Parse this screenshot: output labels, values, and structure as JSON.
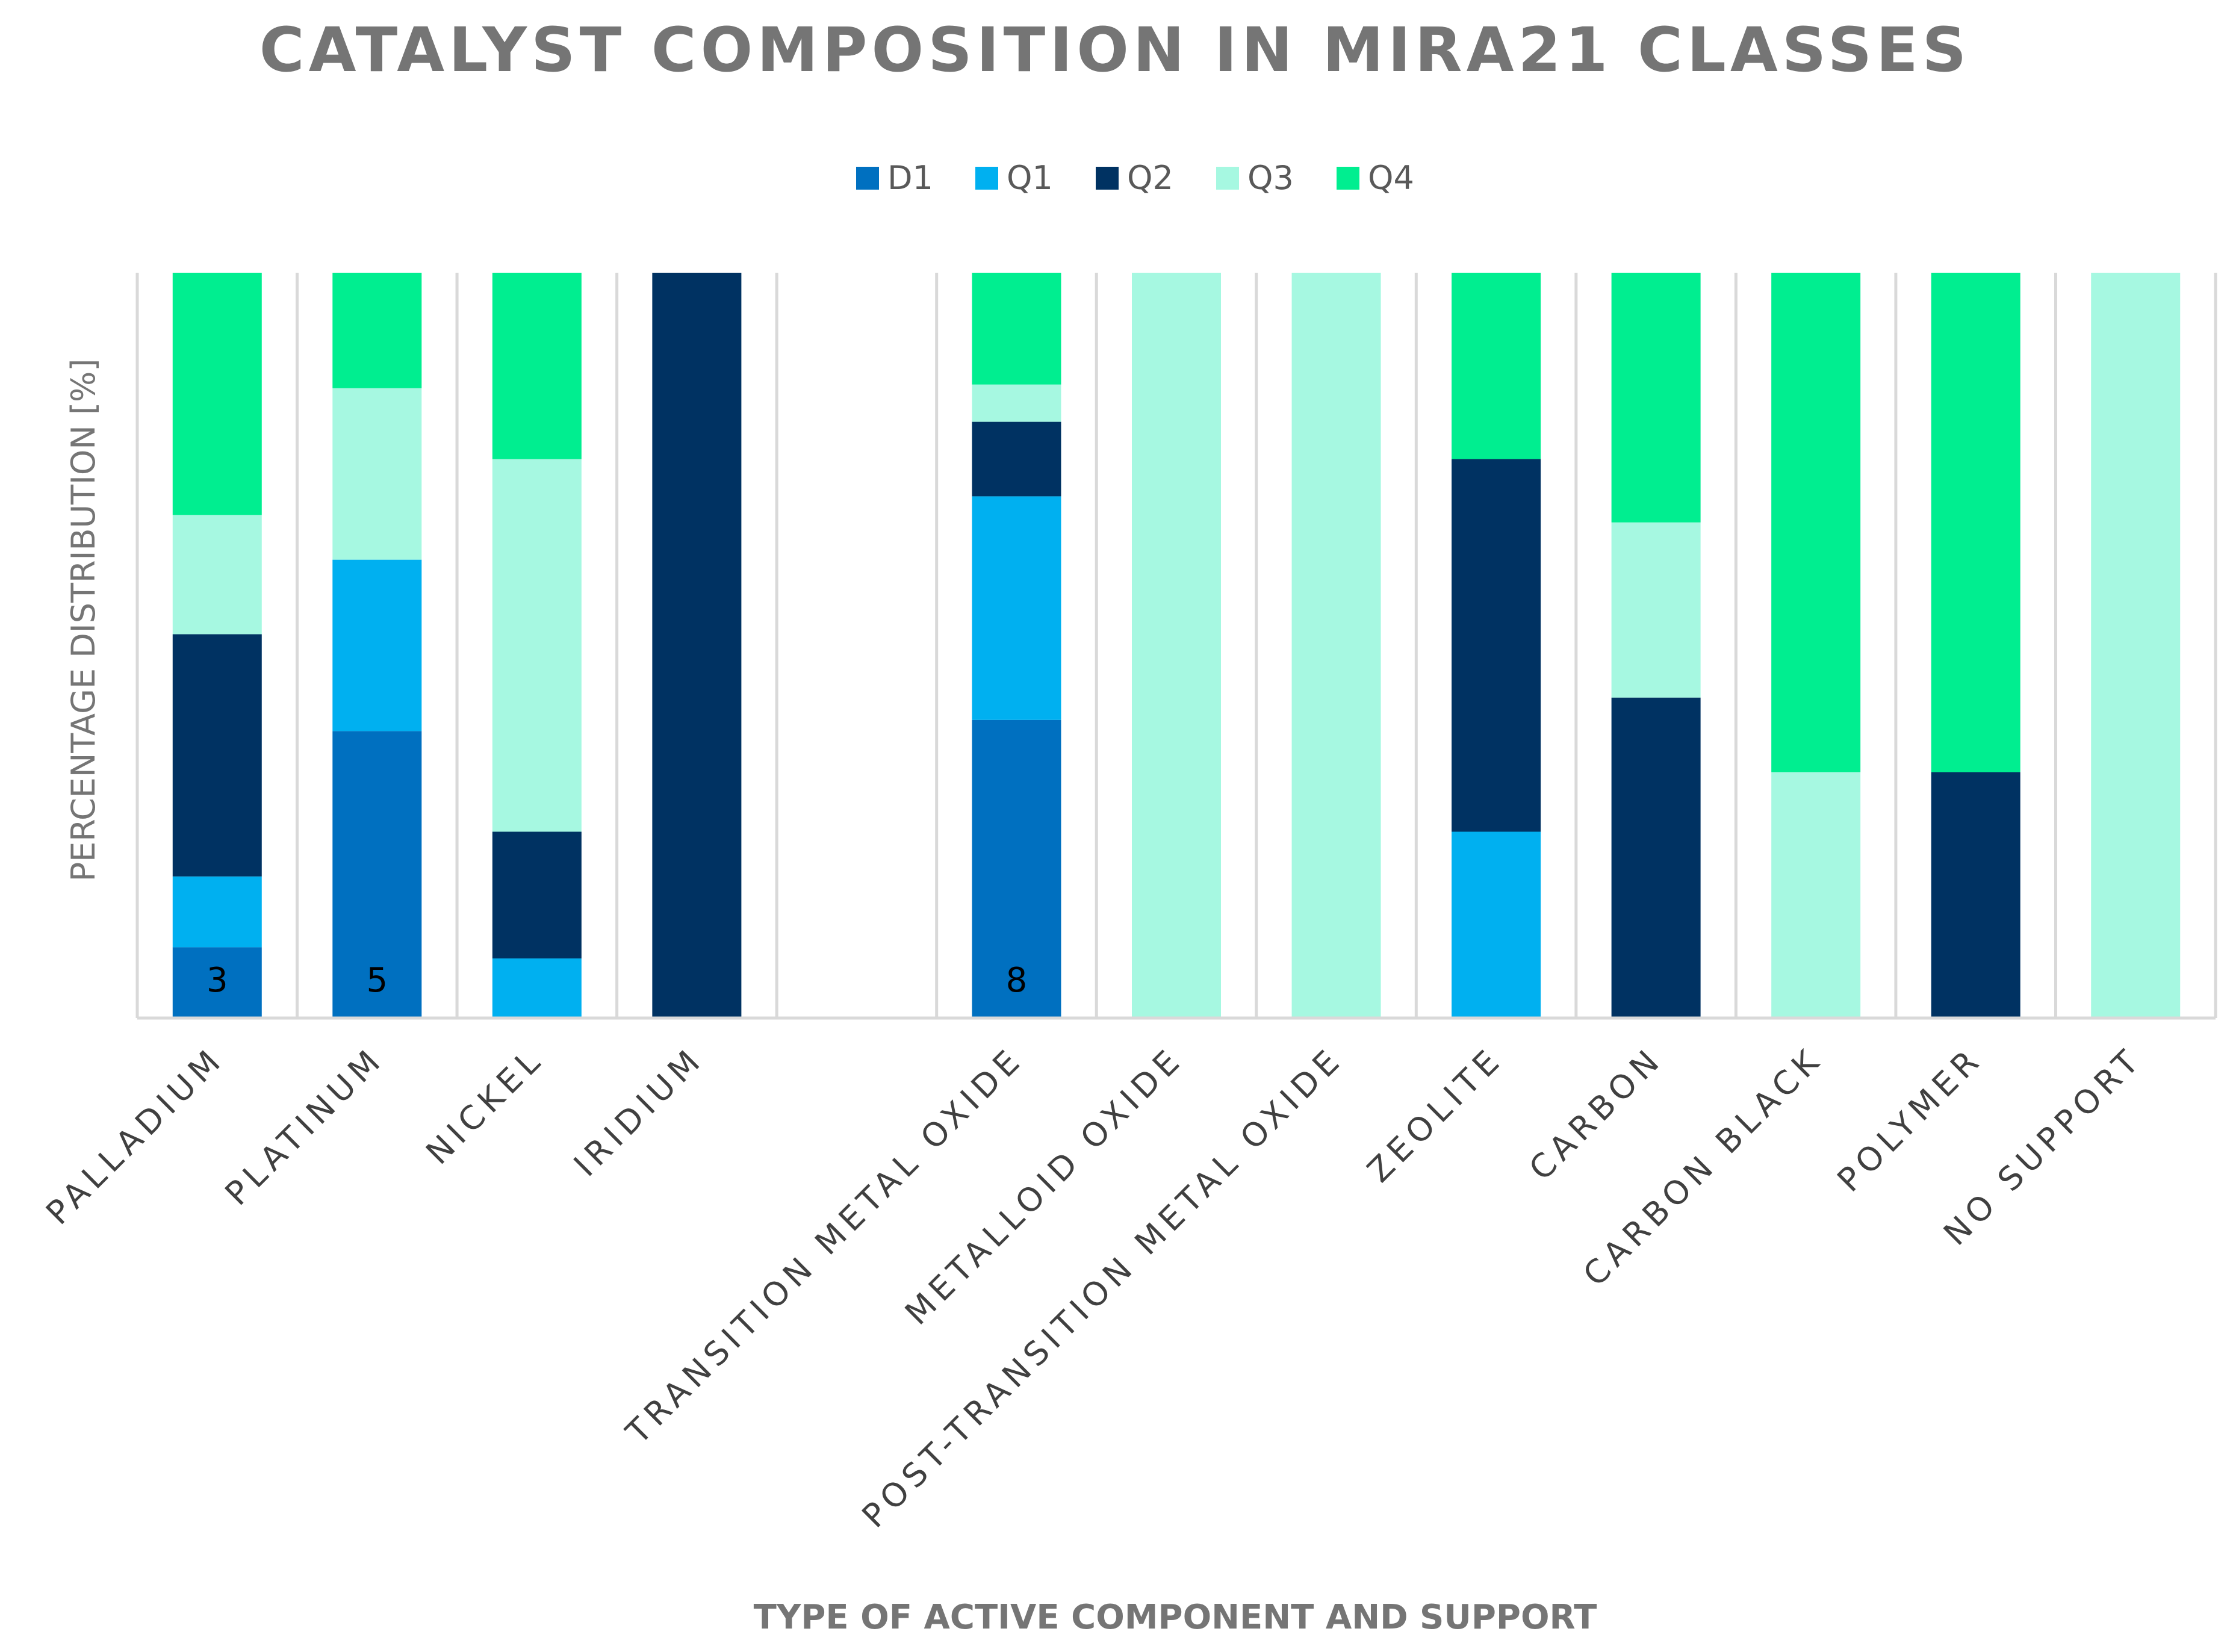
{
  "chart_data": {
    "type": "bar",
    "stacked": true,
    "title": "CATALYST COMPOSITION IN MIRA21 CLASSES",
    "xlabel": "TYPE OF ACTIVE COMPONENT AND SUPPORT",
    "ylabel": "PERCENTAGE DISTRIBUTION [%]",
    "ylim": [
      0,
      100
    ],
    "legend_position": "top-center",
    "categories": [
      "PALLADIUM",
      "PLATINUM",
      "NICKEL",
      "IRIDIUM",
      "",
      "TRANSITION METAL OXIDE",
      "METALLOID OXIDE",
      "POST-TRANSITION METAL OXIDE",
      "ZEOLITE",
      "CARBON",
      "CARBON BLACK",
      "POLYMER",
      "NO SUPPORT"
    ],
    "series": [
      {
        "name": "D1",
        "color": "#0070C0",
        "values": [
          9.5,
          38.5,
          0,
          0,
          0,
          40,
          0,
          0,
          0,
          0,
          0,
          0,
          0
        ],
        "labels": [
          "3",
          "5",
          "",
          "",
          "",
          "8",
          "",
          "",
          "",
          "",
          "",
          "",
          ""
        ]
      },
      {
        "name": "Q1",
        "color": "#00B0F0",
        "values": [
          9.5,
          23,
          8,
          0,
          0,
          30,
          0,
          0,
          25,
          0,
          0,
          0,
          0
        ]
      },
      {
        "name": "Q2",
        "color": "#003262",
        "values": [
          32.5,
          0,
          17,
          100,
          0,
          10,
          0,
          0,
          50,
          43,
          0,
          33,
          0
        ]
      },
      {
        "name": "Q3",
        "color": "#A6F8E1",
        "values": [
          16,
          23,
          50,
          0,
          0,
          5,
          100,
          100,
          0,
          23.5,
          33,
          0,
          100
        ]
      },
      {
        "name": "Q4",
        "color": "#00EE90",
        "values": [
          32.5,
          15.5,
          25,
          0,
          0,
          15,
          0,
          0,
          25,
          33.5,
          67,
          67,
          0
        ]
      }
    ]
  }
}
